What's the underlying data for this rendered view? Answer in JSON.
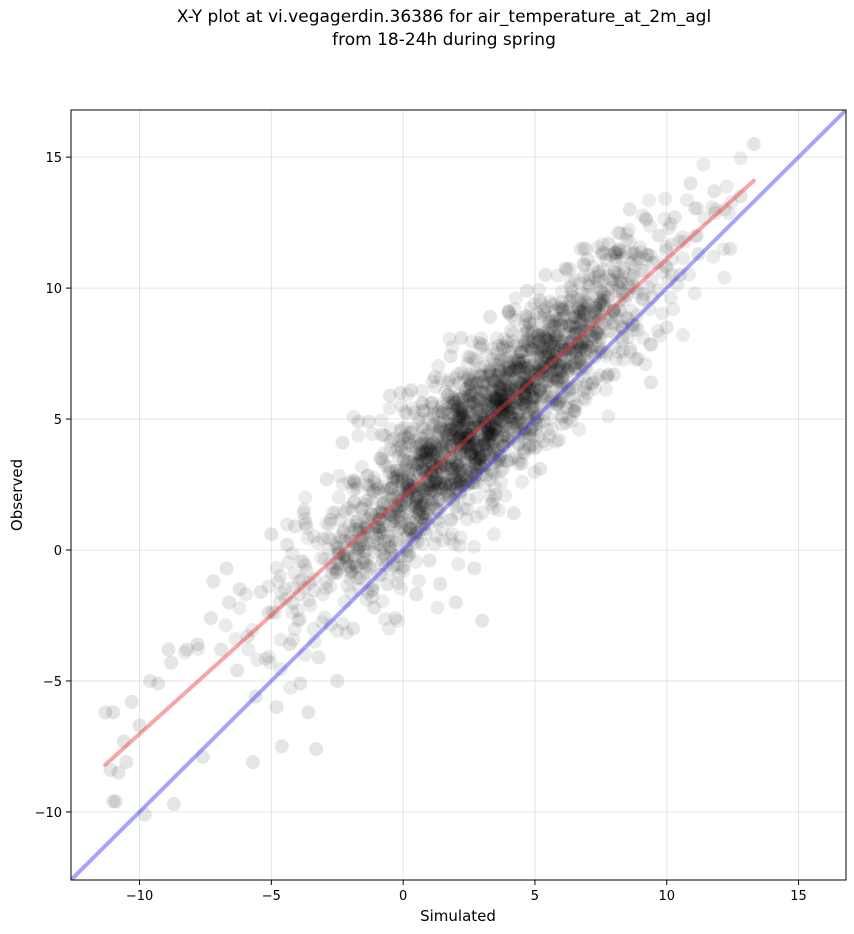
{
  "title_line1": "X-Y plot at vi.vegagerdin.36386 for air_temperature_at_2m_agl",
  "title_line2": "from 18-24h during spring",
  "chart_data": {
    "type": "scatter",
    "title": "X-Y plot at vi.vegagerdin.36386 for air_temperature_at_2m_agl\nfrom 18-24h during spring",
    "xlabel": "Simulated",
    "ylabel": "Observed",
    "xlim": [
      -12.6,
      16.8
    ],
    "ylim": [
      -12.6,
      16.8
    ],
    "xticks": [
      -10,
      -5,
      0,
      5,
      10,
      15
    ],
    "yticks": [
      -10,
      -5,
      0,
      5,
      10,
      15
    ],
    "xtick_labels": [
      "−10",
      "−5",
      "0",
      "5",
      "10",
      "15"
    ],
    "ytick_labels": [
      "−10",
      "−5",
      "0",
      "5",
      "10",
      "15"
    ],
    "grid": true,
    "colors": {
      "points": "#000000",
      "fit_line": "#e8393d",
      "identity_line": "#3a3af0"
    },
    "identity_line": {
      "x": [
        -12.6,
        16.8
      ],
      "y": [
        -12.6,
        16.8
      ]
    },
    "fit_line": {
      "x": [
        -11.3,
        13.3
      ],
      "y": [
        -8.2,
        14.1
      ]
    },
    "points_note_count": 2200,
    "points": [
      [
        -11.3,
        -6.2
      ],
      [
        -11.0,
        -6.2
      ],
      [
        -11.1,
        -8.4
      ],
      [
        -10.8,
        -8.5
      ],
      [
        -11.0,
        -9.6
      ],
      [
        -10.9,
        -9.6
      ],
      [
        -10.5,
        -8.1
      ],
      [
        -10.6,
        -7.3
      ],
      [
        -10.3,
        -5.8
      ],
      [
        -10.0,
        -6.7
      ],
      [
        -9.8,
        -10.1
      ],
      [
        -9.6,
        -5.0
      ],
      [
        -9.3,
        -5.1
      ],
      [
        -8.8,
        -4.3
      ],
      [
        -8.7,
        -9.7
      ],
      [
        -8.9,
        -3.8
      ],
      [
        -8.2,
        -3.8
      ],
      [
        -7.8,
        -3.6
      ],
      [
        -7.6,
        -7.9
      ],
      [
        -7.3,
        -2.6
      ],
      [
        -7.2,
        -1.2
      ],
      [
        -6.9,
        -3.8
      ],
      [
        -6.7,
        -0.7
      ],
      [
        -6.6,
        -2.0
      ],
      [
        -6.3,
        -4.6
      ],
      [
        -6.2,
        -1.5
      ],
      [
        -5.9,
        -3.3
      ],
      [
        -5.7,
        -8.1
      ],
      [
        -5.6,
        -5.6
      ],
      [
        -5.4,
        -1.6
      ],
      [
        -5.1,
        -2.4
      ],
      [
        -5.0,
        0.6
      ],
      [
        -4.8,
        -6.0
      ],
      [
        -4.6,
        -7.5
      ],
      [
        -4.4,
        0.2
      ],
      [
        -4.3,
        -3.6
      ],
      [
        -4.1,
        0.9
      ],
      [
        -3.9,
        -5.1
      ],
      [
        -3.7,
        1.0
      ],
      [
        -3.6,
        -6.2
      ],
      [
        -3.3,
        -7.6
      ],
      [
        -3.2,
        -4.1
      ],
      [
        -2.9,
        2.7
      ],
      [
        -2.7,
        -0.9
      ],
      [
        -2.5,
        -5.0
      ],
      [
        -2.3,
        4.1
      ],
      [
        -2.1,
        1.6
      ],
      [
        -1.9,
        -3.0
      ],
      [
        -1.7,
        4.9
      ],
      [
        -1.5,
        0.2
      ],
      [
        -1.3,
        4.9
      ],
      [
        -1.1,
        -2.2
      ],
      [
        -0.9,
        2.2
      ],
      [
        -0.8,
        4.4
      ],
      [
        -0.6,
        -1.3
      ],
      [
        -0.5,
        5.9
      ],
      [
        -0.3,
        -2.6
      ],
      [
        -0.1,
        6.0
      ],
      [
        0.1,
        1.0
      ],
      [
        0.3,
        6.1
      ],
      [
        0.5,
        -1.7
      ],
      [
        0.8,
        5.3
      ],
      [
        1.0,
        -0.4
      ],
      [
        1.2,
        6.6
      ],
      [
        1.4,
        -1.3
      ],
      [
        1.6,
        3.2
      ],
      [
        1.8,
        7.4
      ],
      [
        2.0,
        -2.0
      ],
      [
        2.2,
        8.1
      ],
      [
        2.5,
        4.7
      ],
      [
        2.7,
        -0.7
      ],
      [
        2.9,
        7.9
      ],
      [
        3.0,
        -2.7
      ],
      [
        3.3,
        8.9
      ],
      [
        3.5,
        2.1
      ],
      [
        3.8,
        4.9
      ],
      [
        4.0,
        9.1
      ],
      [
        4.2,
        1.4
      ],
      [
        4.5,
        3.3
      ],
      [
        4.7,
        9.9
      ],
      [
        5.0,
        5.5
      ],
      [
        5.2,
        3.1
      ],
      [
        5.4,
        10.5
      ],
      [
        5.7,
        7.2
      ],
      [
        5.9,
        4.2
      ],
      [
        6.2,
        10.7
      ],
      [
        6.5,
        5.3
      ],
      [
        6.7,
        8.3
      ],
      [
        7.0,
        11.1
      ],
      [
        7.2,
        6.4
      ],
      [
        7.5,
        9.4
      ],
      [
        7.8,
        11.7
      ],
      [
        8.0,
        6.7
      ],
      [
        8.3,
        10.2
      ],
      [
        8.6,
        13.0
      ],
      [
        8.9,
        7.3
      ],
      [
        9.2,
        11.1
      ],
      [
        9.4,
        6.4
      ],
      [
        9.7,
        12.0
      ],
      [
        10.0,
        8.5
      ],
      [
        10.3,
        12.7
      ],
      [
        10.5,
        10.5
      ],
      [
        10.9,
        14.0
      ],
      [
        11.2,
        11.3
      ],
      [
        11.8,
        13.7
      ],
      [
        12.4,
        11.5
      ],
      [
        12.8,
        13.5
      ],
      [
        13.3,
        15.5
      ]
    ]
  }
}
